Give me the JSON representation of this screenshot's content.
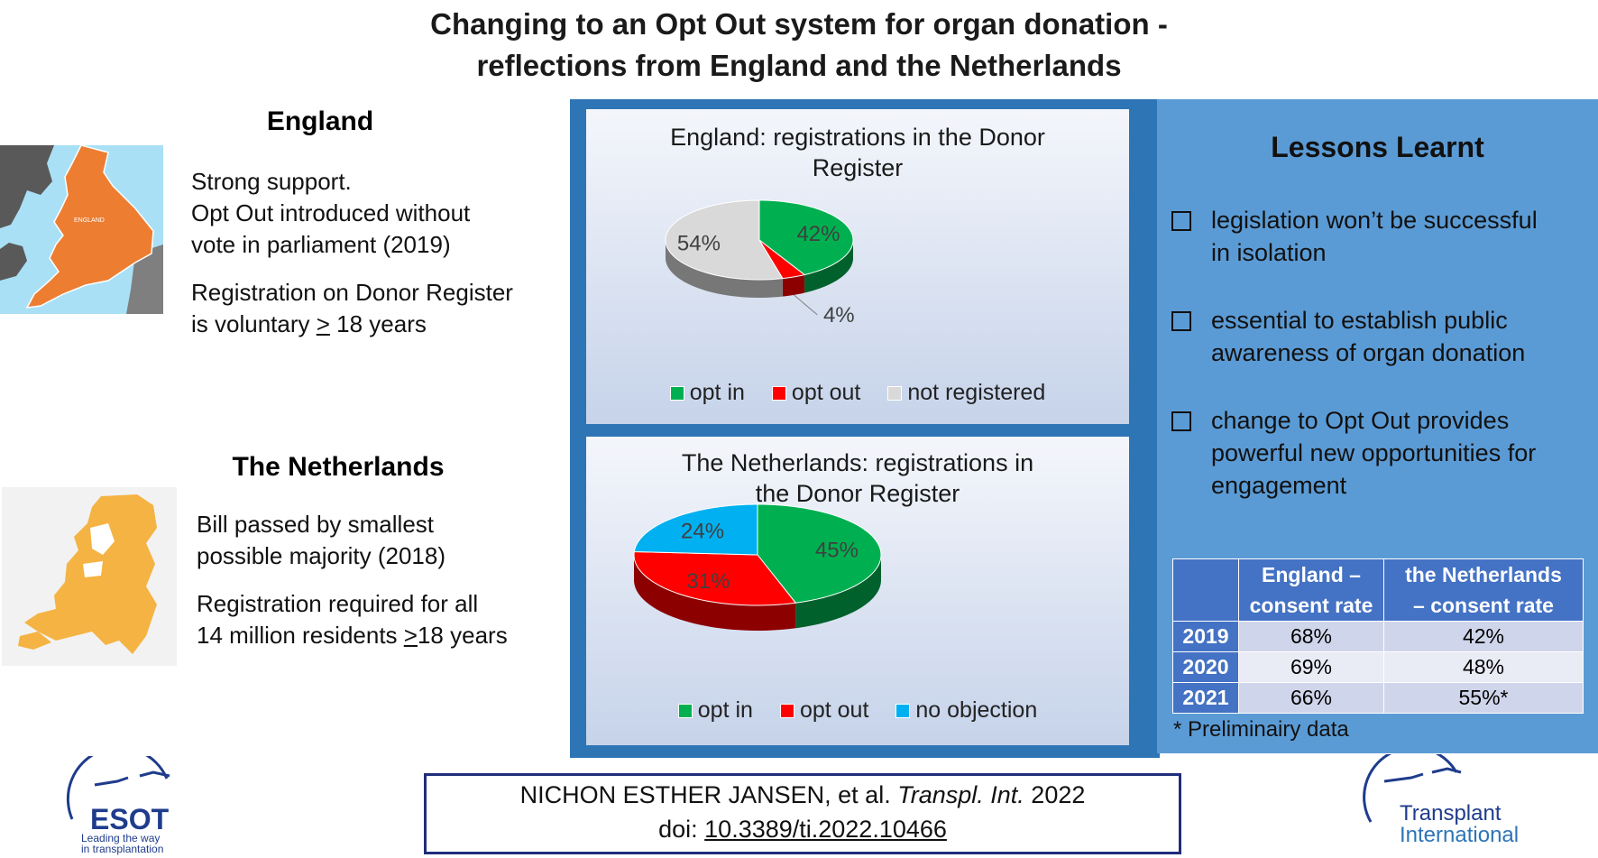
{
  "title_line1": "Changing to an Opt Out system for organ donation -",
  "title_line2": "reflections from England and the Netherlands",
  "england": {
    "heading": "England",
    "map_label": "ENGLAND",
    "text1_line1": "Strong support.",
    "text1_line2": "Opt Out introduced without",
    "text1_line3": "vote in parliament (2019)",
    "text2_line1": "Registration on Donor Register",
    "text2_pre": "is voluntary ",
    "text2_ge": ">",
    "text2_post": " 18 years"
  },
  "netherlands": {
    "heading": "The Netherlands",
    "text1_line1": "Bill passed by smallest",
    "text1_line2": "possible majority (2018)",
    "text2_line1": "Registration required for all",
    "text2_pre": "14 million  residents ",
    "text2_ge": ">",
    "text2_post": "18 years"
  },
  "colors": {
    "opt_in": "#00b050",
    "opt_out": "#ff0000",
    "not_registered": "#d9d9d9",
    "no_objection": "#00b0f0",
    "frame_blue": "#2e75b6",
    "lessons_blue": "#5b9bd5",
    "table_header": "#4472c4"
  },
  "chart_data": [
    {
      "type": "pie",
      "title_line1": "England:  registrations in the Donor",
      "title_line2": "Register",
      "categories": [
        "opt in",
        "opt out",
        "not registered"
      ],
      "values": [
        42,
        4,
        54
      ],
      "labels": [
        "42%",
        "4%",
        "54%"
      ],
      "legend_position": "bottom"
    },
    {
      "type": "pie",
      "title_line1": "The Netherlands:  registrations in",
      "title_line2": "the Donor Register",
      "categories": [
        "opt in",
        "opt out",
        "no objection"
      ],
      "values": [
        45,
        31,
        24
      ],
      "labels": [
        "45%",
        "31%",
        "24%"
      ],
      "legend_position": "bottom"
    }
  ],
  "lessons": {
    "title": "Lessons Learnt",
    "items": [
      {
        "line1": "legislation won’t be successful",
        "line2": "in isolation",
        "line3": ""
      },
      {
        "line1": "essential to establish public",
        "line2": "awareness of organ donation",
        "line3": ""
      },
      {
        "line1": "change to Opt Out provides",
        "line2": "powerful new opportunities for",
        "line3": "engagement"
      }
    ],
    "table": {
      "col1_line1": "England –",
      "col1_line2": "consent rate",
      "col2_line1": "the Netherlands",
      "col2_line2": "– consent rate",
      "rows": [
        {
          "year": "2019",
          "england": "68%",
          "netherlands": "42%"
        },
        {
          "year": "2020",
          "england": "69%",
          "netherlands": "48%"
        },
        {
          "year": "2021",
          "england": "66%",
          "netherlands": "55%*"
        }
      ]
    },
    "footnote": "* Preliminairy data"
  },
  "citation": {
    "authors": "NICHON ESTHER JANSEN, et al.",
    "journal": "Transpl. Int.",
    "year": "2022",
    "doi_prefix": "doi:",
    "doi": "10.3389/ti.2022.10466"
  },
  "logos": {
    "esot": "ESOT",
    "esot_tag1": "Leading the way",
    "esot_tag2": "in transplantation",
    "ti1": "Transplant",
    "ti2": "International"
  }
}
